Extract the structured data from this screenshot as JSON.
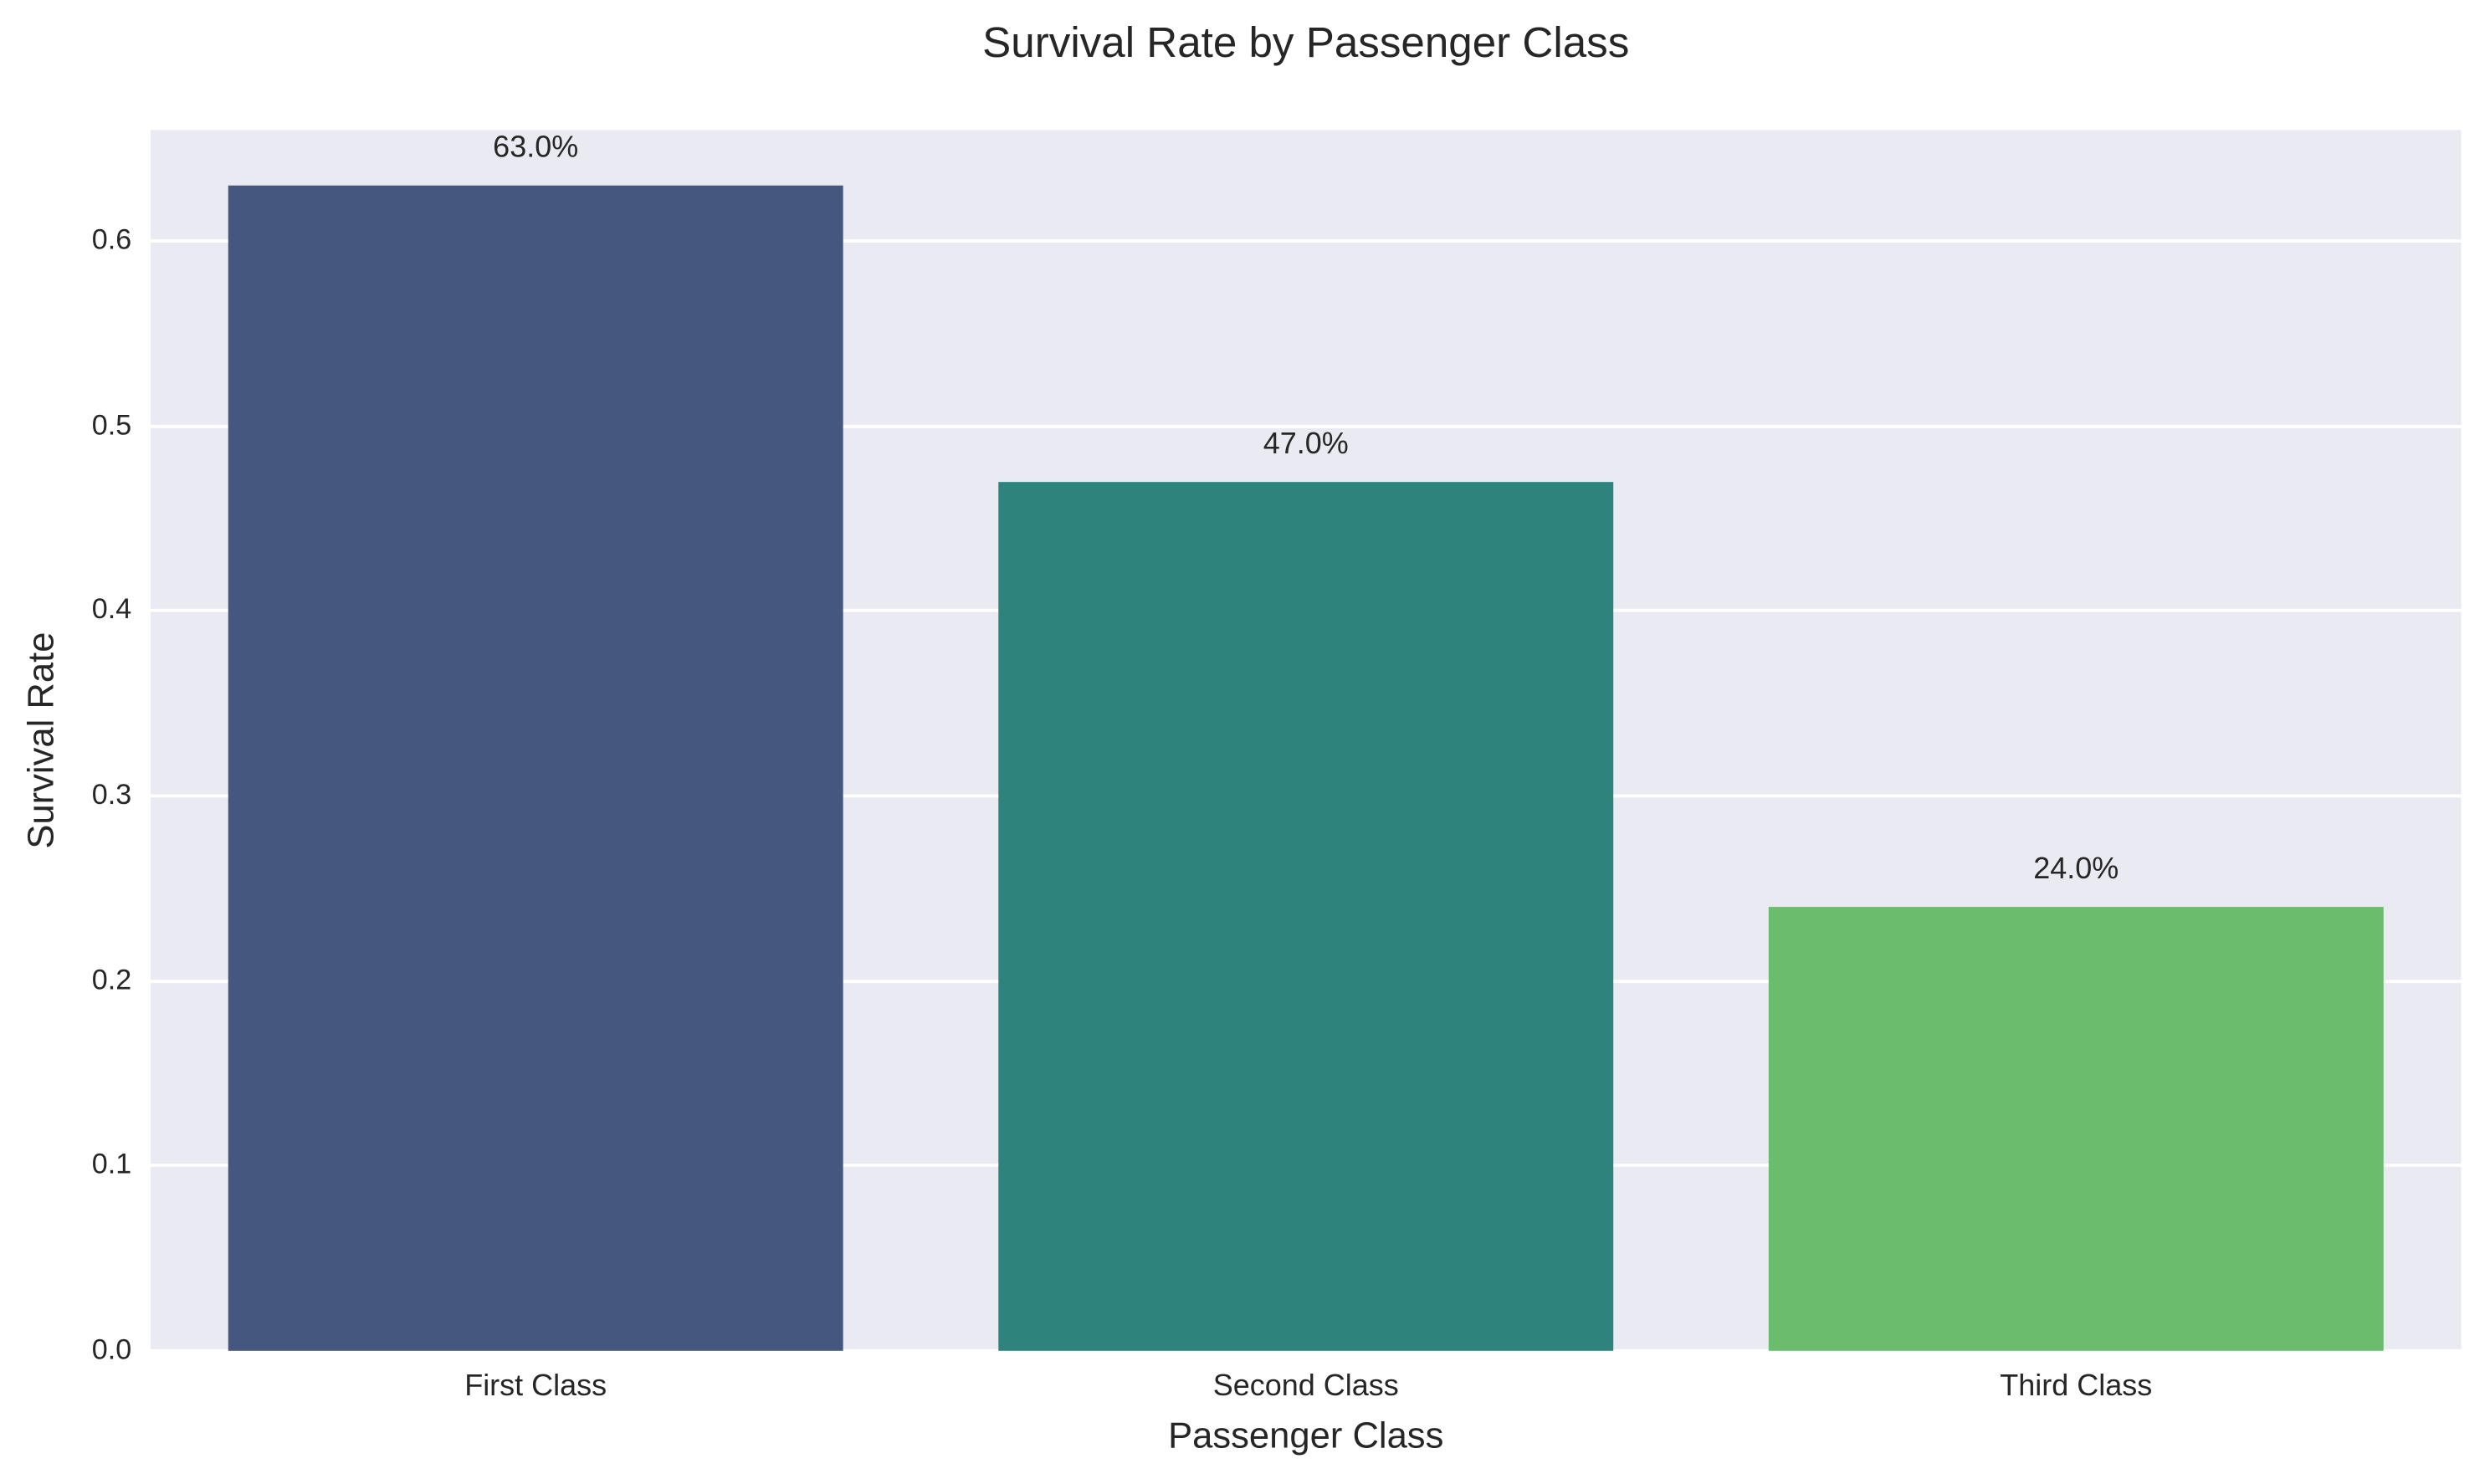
{
  "chart_data": {
    "type": "bar",
    "title": "Survival Rate by Passenger Class",
    "xlabel": "Passenger Class",
    "ylabel": "Survival Rate",
    "categories": [
      "First Class",
      "Second Class",
      "Third Class"
    ],
    "values": [
      0.63,
      0.47,
      0.24
    ],
    "value_labels": [
      "63.0%",
      "47.0%",
      "24.0%"
    ],
    "colors": [
      "#46577f",
      "#2e847d",
      "#6bbc6c"
    ],
    "ylim": [
      0.0,
      0.66
    ],
    "yticks": [
      0.0,
      0.1,
      0.2,
      0.3,
      0.4,
      0.5,
      0.6
    ],
    "ytick_labels": [
      "0.0",
      "0.1",
      "0.2",
      "0.3",
      "0.4",
      "0.5",
      "0.6"
    ],
    "grid": true,
    "legend": null,
    "background": "#eaeaf2"
  }
}
